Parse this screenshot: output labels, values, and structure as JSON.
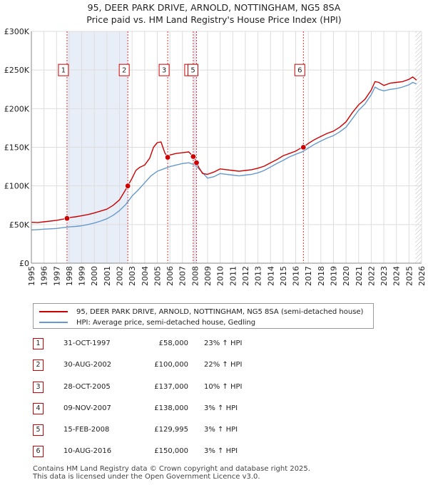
{
  "title_line1": "95, DEER PARK DRIVE, ARNOLD, NOTTINGHAM, NG5 8SA",
  "title_line2": "Price paid vs. HM Land Registry's House Price Index (HPI)",
  "chart_data": {
    "type": "line",
    "title": "95, DEER PARK DRIVE, ARNOLD, NOTTINGHAM, NG5 8SA — Price paid vs. HM Land Registry's House Price Index (HPI)",
    "xlim": [
      1995,
      2026
    ],
    "ylim": [
      0,
      300000
    ],
    "y_ticks": [
      0,
      50000,
      100000,
      150000,
      200000,
      250000,
      300000
    ],
    "y_tick_labels": [
      "£0",
      "£50K",
      "£100K",
      "£150K",
      "£200K",
      "£250K",
      "£300K"
    ],
    "x_ticks": [
      1995,
      1996,
      1997,
      1998,
      1999,
      2000,
      2001,
      2002,
      2003,
      2004,
      2005,
      2006,
      2007,
      2008,
      2009,
      2010,
      2011,
      2012,
      2013,
      2014,
      2015,
      2016,
      2017,
      2018,
      2019,
      2020,
      2021,
      2022,
      2023,
      2024,
      2025,
      2026
    ],
    "grid": true,
    "shaded_ranges": [
      [
        1997.83,
        2002.66
      ],
      [
        2007.86,
        2008.12
      ]
    ],
    "hatched_from": 2025.5,
    "series": [
      {
        "name": "95, DEER PARK DRIVE, ARNOLD, NOTTINGHAM, NG5 8SA (semi-detached house)",
        "color": "#cc0000",
        "x": [
          1995,
          1995.5,
          1996,
          1996.5,
          1997,
          1997.5,
          1997.83,
          1998,
          1998.5,
          1999,
          1999.5,
          2000,
          2000.5,
          2001,
          2001.5,
          2002,
          2002.3,
          2002.66,
          2003,
          2003.3,
          2003.6,
          2004,
          2004.4,
          2004.7,
          2005,
          2005.3,
          2005.6,
          2005.83,
          2006,
          2006.5,
          2007,
          2007.5,
          2007.86,
          2008,
          2008.12,
          2008.3,
          2008.6,
          2009,
          2009.5,
          2010,
          2010.5,
          2011,
          2011.5,
          2012,
          2012.5,
          2013,
          2013.5,
          2014,
          2014.5,
          2015,
          2015.5,
          2016,
          2016.3,
          2016.61,
          2017,
          2017.5,
          2018,
          2018.5,
          2019,
          2019.5,
          2020,
          2020.5,
          2021,
          2021.5,
          2022,
          2022.3,
          2022.6,
          2023,
          2023.5,
          2024,
          2024.5,
          2025,
          2025.3,
          2025.6
        ],
        "y": [
          53000,
          52500,
          53500,
          54500,
          55500,
          57000,
          58000,
          59000,
          60000,
          61500,
          63000,
          65000,
          67500,
          70000,
          75000,
          82000,
          90000,
          100000,
          110000,
          120000,
          124000,
          127000,
          136000,
          150000,
          156000,
          157000,
          143000,
          137000,
          140000,
          142000,
          143000,
          144000,
          138000,
          135000,
          129995,
          124000,
          116000,
          115000,
          118000,
          122000,
          121000,
          120000,
          119000,
          120000,
          121000,
          123000,
          125500,
          130000,
          134000,
          139000,
          142000,
          145000,
          148000,
          150000,
          155000,
          160000,
          164000,
          168000,
          171000,
          176000,
          183000,
          195000,
          205000,
          212000,
          224000,
          235000,
          234000,
          230000,
          233000,
          234000,
          235000,
          238000,
          241000,
          237000
        ]
      },
      {
        "name": "HPI: Average price, semi-detached house, Gedling",
        "color": "#6699cc",
        "x": [
          1995,
          1995.5,
          1996,
          1996.5,
          1997,
          1997.5,
          1998,
          1998.5,
          1999,
          1999.5,
          2000,
          2000.5,
          2001,
          2001.5,
          2002,
          2002.5,
          2003,
          2003.5,
          2004,
          2004.5,
          2005,
          2005.5,
          2006,
          2006.5,
          2007,
          2007.5,
          2008,
          2008.5,
          2009,
          2009.5,
          2010,
          2010.5,
          2011,
          2011.5,
          2012,
          2012.5,
          2013,
          2013.5,
          2014,
          2014.5,
          2015,
          2015.5,
          2016,
          2016.5,
          2017,
          2017.5,
          2018,
          2018.5,
          2019,
          2019.5,
          2020,
          2020.5,
          2021,
          2021.5,
          2022,
          2022.3,
          2022.6,
          2023,
          2023.5,
          2024,
          2024.5,
          2025,
          2025.3,
          2025.6
        ],
        "y": [
          43000,
          43500,
          44000,
          44500,
          45000,
          46000,
          47000,
          47500,
          48500,
          50000,
          52000,
          54500,
          57500,
          62000,
          68000,
          76000,
          87000,
          95000,
          104000,
          113000,
          119000,
          122000,
          125000,
          127000,
          129000,
          130000,
          127000,
          119000,
          110000,
          112000,
          116000,
          115000,
          114000,
          113000,
          114000,
          115000,
          117000,
          120000,
          124500,
          129000,
          133000,
          137500,
          141000,
          144000,
          149000,
          154000,
          158000,
          162000,
          165000,
          170000,
          176000,
          187000,
          198000,
          206000,
          218000,
          228000,
          225000,
          223000,
          225000,
          226000,
          228000,
          231000,
          234000,
          232000
        ]
      }
    ],
    "transactions": [
      {
        "num": "1",
        "date": "31-OCT-1997",
        "price_label": "£58,000",
        "hpi": "23% ↑ HPI",
        "x": 1997.83,
        "price": 58000
      },
      {
        "num": "2",
        "date": "30-AUG-2002",
        "price_label": "£100,000",
        "hpi": "22% ↑ HPI",
        "x": 2002.66,
        "price": 100000
      },
      {
        "num": "3",
        "date": "28-OCT-2005",
        "price_label": "£137,000",
        "hpi": "10% ↑ HPI",
        "x": 2005.83,
        "price": 137000
      },
      {
        "num": "4",
        "date": "09-NOV-2007",
        "price_label": "£138,000",
        "hpi": "3% ↑ HPI",
        "x": 2007.86,
        "price": 138000
      },
      {
        "num": "5",
        "date": "15-FEB-2008",
        "price_label": "£129,995",
        "hpi": "3% ↑ HPI",
        "x": 2008.12,
        "price": 129995
      },
      {
        "num": "6",
        "date": "10-AUG-2016",
        "price_label": "£150,000",
        "hpi": "3% ↑ HPI",
        "x": 2016.61,
        "price": 150000
      }
    ],
    "marker_label_values": [
      250000,
      250000,
      250000,
      250000,
      250000,
      250000
    ]
  },
  "legend": {
    "red_label": "95, DEER PARK DRIVE, ARNOLD, NOTTINGHAM, NG5 8SA (semi-detached house)",
    "blue_label": "HPI: Average price, semi-detached house, Gedling",
    "red_color": "#cc0000",
    "blue_color": "#6699cc"
  },
  "footer": {
    "line1": "Contains HM Land Registry data © Crown copyright and database right 2025.",
    "line2": "This data is licensed under the Open Government Licence v3.0."
  }
}
